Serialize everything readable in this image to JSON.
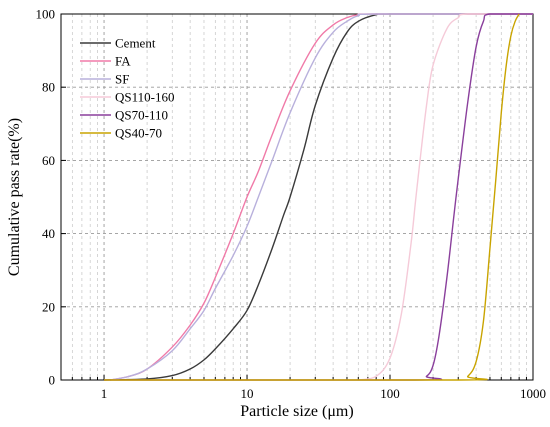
{
  "chart_data": {
    "type": "line",
    "title": "",
    "xlabel": "Particle size (μm)",
    "ylabel": "Cumulative pass rate(%)",
    "xscale": "log",
    "xlim": [
      0.5,
      1000
    ],
    "ylim": [
      0,
      100
    ],
    "xticks": [
      1,
      10,
      100,
      1000
    ],
    "xtick_labels": [
      "1",
      "10",
      "100",
      "1000"
    ],
    "yticks": [
      0,
      20,
      40,
      60,
      80,
      100
    ],
    "ytick_labels": [
      "0",
      "20",
      "40",
      "60",
      "80",
      "100"
    ],
    "grid": "dashed, major and minor x gridlines",
    "legend_position": "top-left",
    "series": [
      {
        "name": "Cement",
        "color": "#3a3a3a",
        "points": [
          [
            1,
            0
          ],
          [
            2,
            0.3
          ],
          [
            3,
            1.2
          ],
          [
            4,
            3
          ],
          [
            5,
            5.5
          ],
          [
            6,
            8.5
          ],
          [
            8,
            14
          ],
          [
            10,
            19
          ],
          [
            12,
            26
          ],
          [
            15,
            36
          ],
          [
            18,
            45
          ],
          [
            20,
            50
          ],
          [
            25,
            63
          ],
          [
            30,
            75
          ],
          [
            40,
            88
          ],
          [
            50,
            95
          ],
          [
            60,
            98
          ],
          [
            80,
            99.8
          ],
          [
            100,
            100
          ],
          [
            1000,
            100
          ]
        ]
      },
      {
        "name": "FA",
        "color": "#f07aa8",
        "points": [
          [
            1.1,
            0
          ],
          [
            1.5,
            1
          ],
          [
            2,
            3
          ],
          [
            3,
            9
          ],
          [
            4,
            15
          ],
          [
            5,
            21
          ],
          [
            6,
            28
          ],
          [
            8,
            40
          ],
          [
            10,
            50
          ],
          [
            12,
            57
          ],
          [
            15,
            67
          ],
          [
            20,
            79
          ],
          [
            30,
            92
          ],
          [
            40,
            97
          ],
          [
            50,
            99
          ],
          [
            60,
            99.8
          ],
          [
            80,
            100
          ],
          [
            1000,
            100
          ]
        ]
      },
      {
        "name": "SF",
        "color": "#b8b0dc",
        "points": [
          [
            1.1,
            0
          ],
          [
            1.5,
            1
          ],
          [
            2,
            3
          ],
          [
            3,
            8
          ],
          [
            4,
            14
          ],
          [
            5,
            19
          ],
          [
            6,
            25
          ],
          [
            8,
            34
          ],
          [
            10,
            42
          ],
          [
            12,
            50
          ],
          [
            15,
            60
          ],
          [
            20,
            73
          ],
          [
            30,
            88
          ],
          [
            40,
            95
          ],
          [
            50,
            98
          ],
          [
            60,
            99.5
          ],
          [
            80,
            100
          ],
          [
            1000,
            100
          ]
        ]
      },
      {
        "name": "QS110-160",
        "color": "#f5cad8",
        "points": [
          [
            60,
            0
          ],
          [
            80,
            1
          ],
          [
            100,
            6
          ],
          [
            120,
            18
          ],
          [
            140,
            37
          ],
          [
            150,
            48
          ],
          [
            160,
            58
          ],
          [
            180,
            75
          ],
          [
            200,
            86
          ],
          [
            250,
            96
          ],
          [
            300,
            99
          ],
          [
            350,
            100
          ],
          [
            1000,
            100
          ]
        ]
      },
      {
        "name": "QS70-110",
        "color": "#8a3f9c",
        "points": [
          [
            1,
            0
          ],
          [
            150,
            0
          ],
          [
            180,
            1
          ],
          [
            200,
            4
          ],
          [
            220,
            12
          ],
          [
            250,
            28
          ],
          [
            280,
            45
          ],
          [
            300,
            55
          ],
          [
            350,
            76
          ],
          [
            400,
            91
          ],
          [
            450,
            98
          ],
          [
            500,
            100
          ],
          [
            1000,
            100
          ]
        ]
      },
      {
        "name": "QS40-70",
        "color": "#c9a400",
        "points": [
          [
            1,
            0
          ],
          [
            300,
            0
          ],
          [
            350,
            1
          ],
          [
            400,
            5
          ],
          [
            450,
            16
          ],
          [
            500,
            36
          ],
          [
            550,
            55
          ],
          [
            600,
            73
          ],
          [
            650,
            86
          ],
          [
            700,
            94
          ],
          [
            750,
            98
          ],
          [
            800,
            100
          ]
        ]
      }
    ]
  }
}
